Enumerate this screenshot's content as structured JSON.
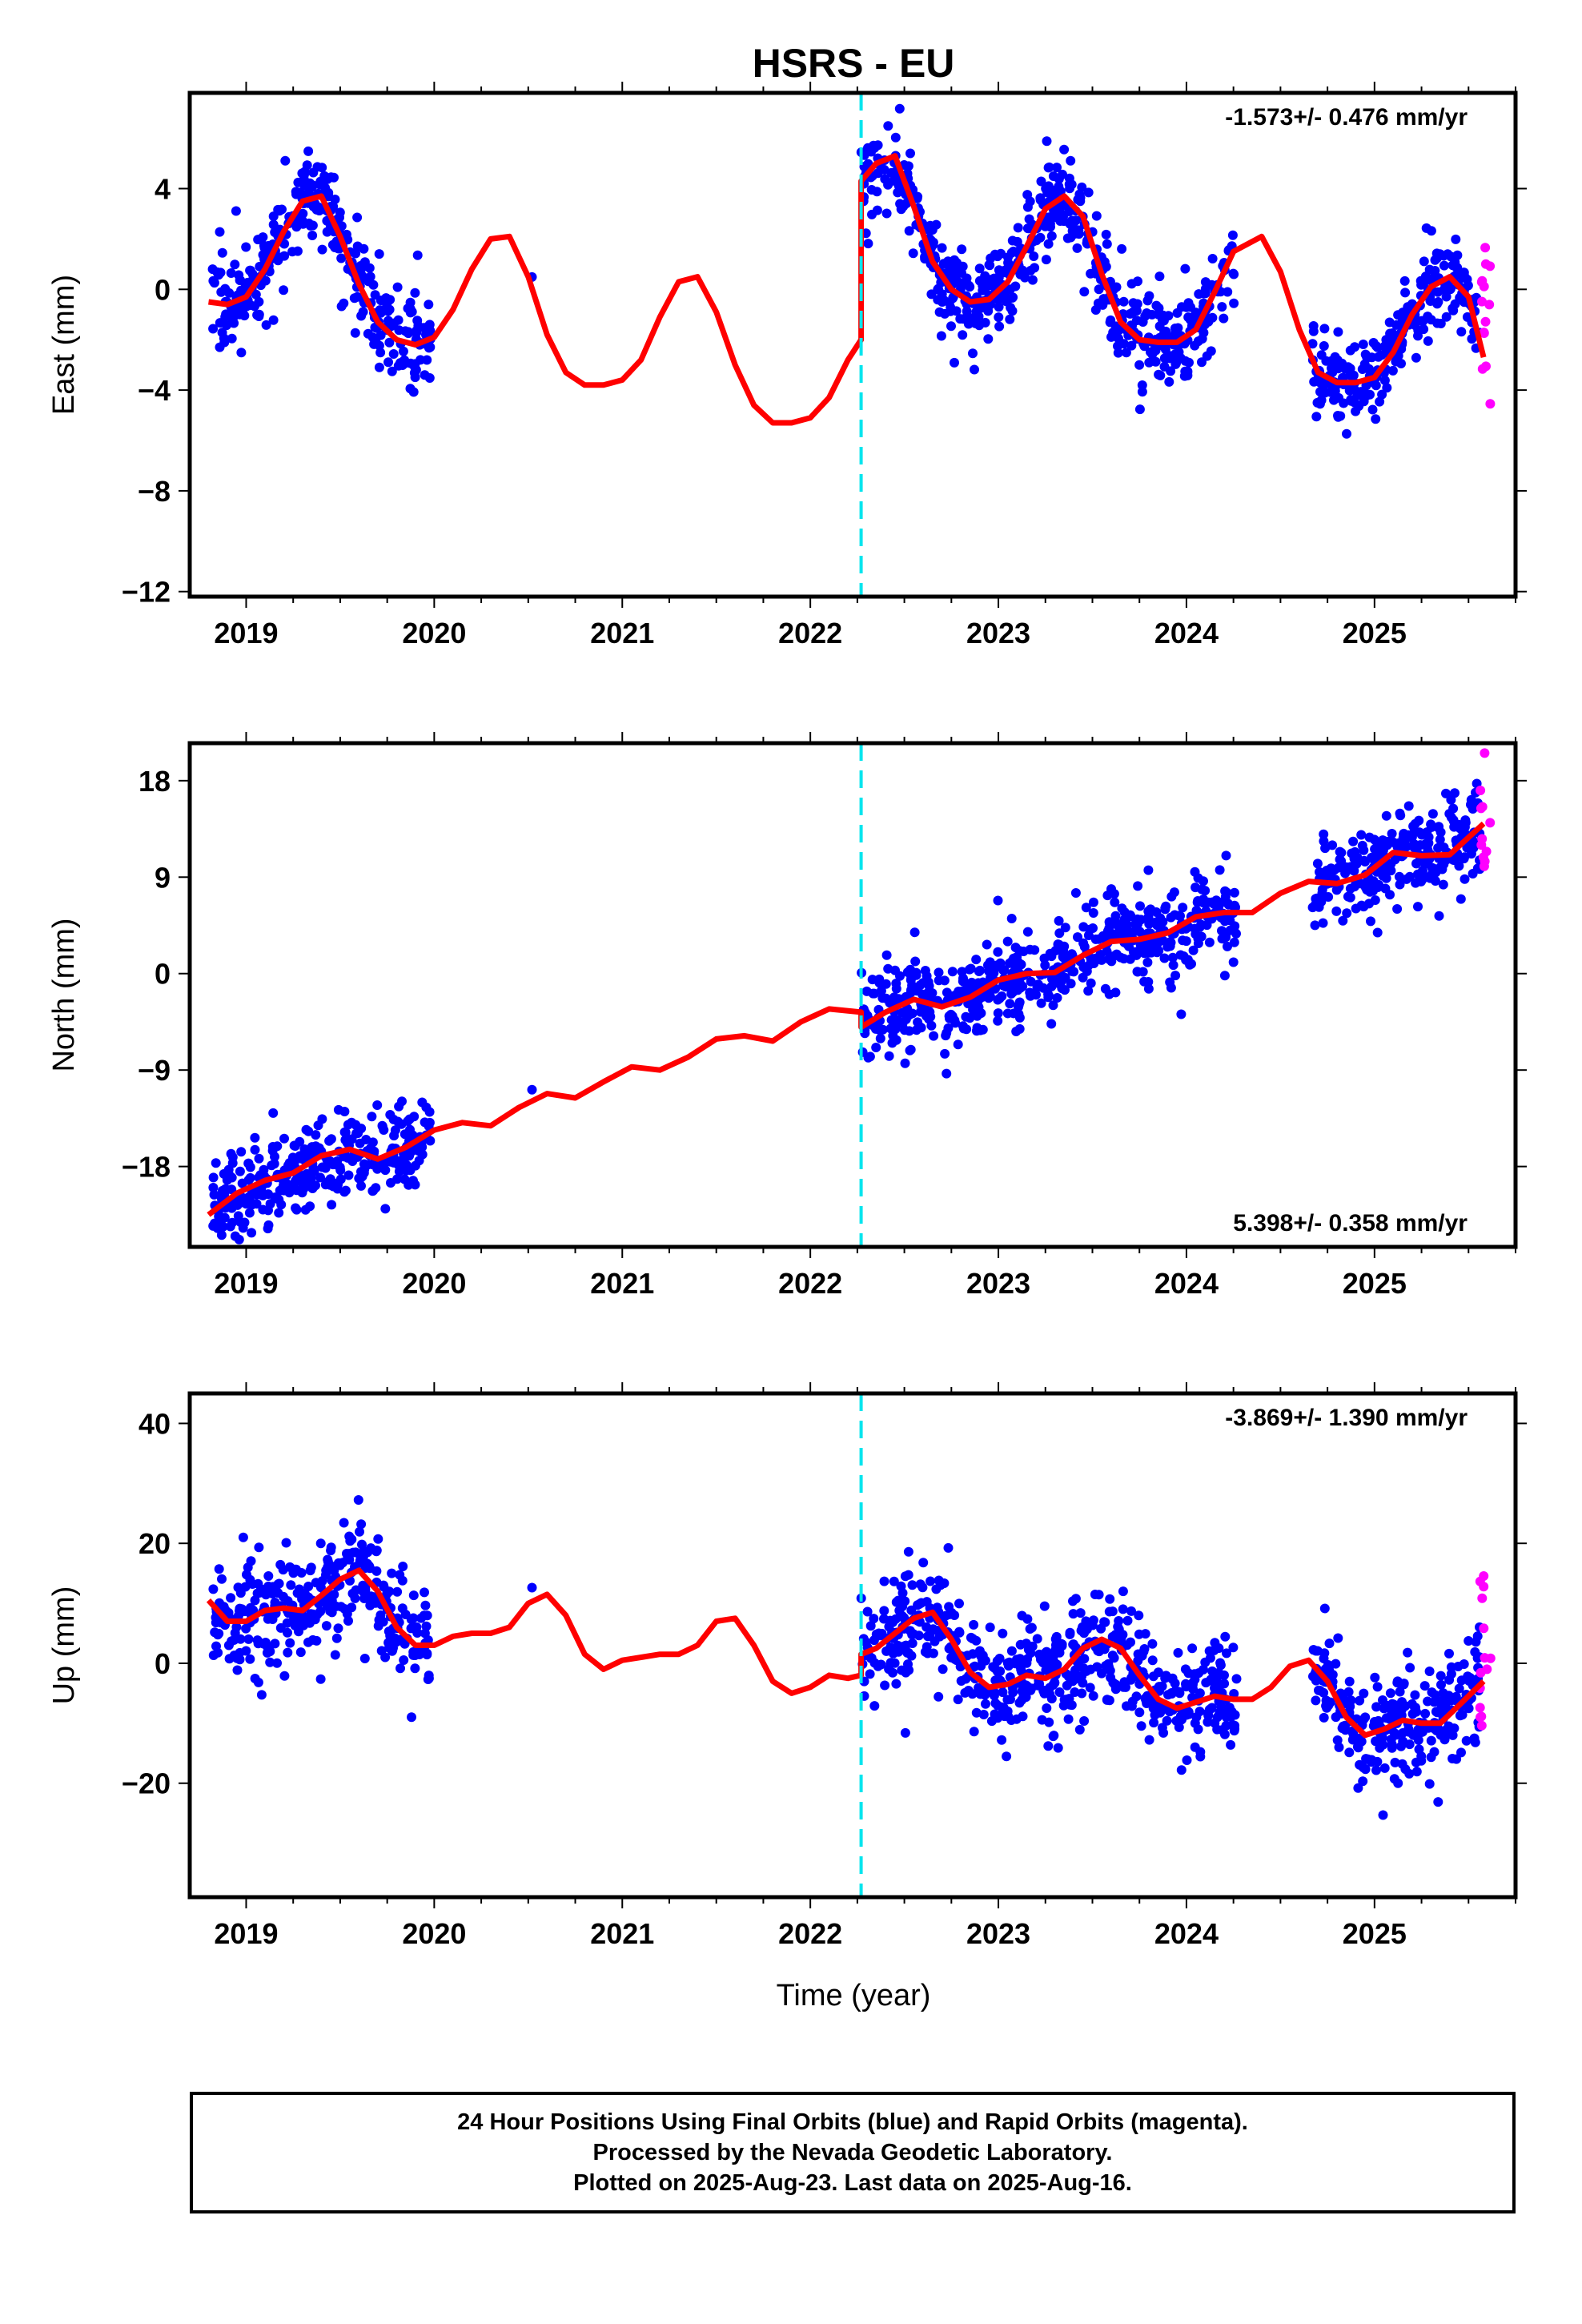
{
  "title": "HSRS - EU",
  "x_axis_label": "Time (year)",
  "footer": {
    "line1": "24 Hour Positions Using Final Orbits (blue) and Rapid Orbits (magenta).",
    "line2": "Processed by the Nevada Geodetic Laboratory.",
    "line3": "Plotted on 2025-Aug-23. Last data on 2025-Aug-16."
  },
  "colors": {
    "final_orbits": "#0000ff",
    "rapid_orbits": "#ff00ff",
    "model_fit": "#ff0000",
    "discontinuity": "#00e5ee"
  },
  "chart_data": [
    {
      "type": "scatter",
      "component": "East",
      "ylabel": "East (mm)",
      "rate_label": "-1.573+/- 0.476 mm/yr",
      "xlim": [
        2018.7,
        2025.75
      ],
      "ylim": [
        -12.2,
        7.8
      ],
      "x_ticks": [
        2019,
        2020,
        2021,
        2022,
        2023,
        2024,
        2025
      ],
      "y_ticks": [
        4,
        0,
        -4,
        -8,
        -12
      ],
      "discontinuity_x": 2022.27,
      "data_segments": [
        [
          2018.82,
          2019.98
        ],
        [
          2022.27,
          2024.27
        ],
        [
          2024.67,
          2025.56
        ]
      ],
      "rapid_range": [
        2025.56,
        2025.62
      ],
      "model_fit": {
        "x": [
          2018.8,
          2018.9,
          2019.0,
          2019.1,
          2019.2,
          2019.3,
          2019.4,
          2019.5,
          2019.6,
          2019.7,
          2019.8,
          2019.9,
          2020.0,
          2020.1,
          2020.2,
          2020.3,
          2020.4,
          2020.5,
          2020.6,
          2020.7,
          2020.8,
          2020.9,
          2021.0,
          2021.1,
          2021.2,
          2021.3,
          2021.4,
          2021.5,
          2021.6,
          2021.7,
          2021.8,
          2021.9,
          2022.0,
          2022.1,
          2022.2,
          2022.27,
          2022.27,
          2022.35,
          2022.45,
          2022.55,
          2022.65,
          2022.75,
          2022.85,
          2022.95,
          2023.05,
          2023.15,
          2023.25,
          2023.35,
          2023.45,
          2023.55,
          2023.65,
          2023.75,
          2023.85,
          2023.95,
          2024.05,
          2024.15,
          2024.25,
          2024.4,
          2024.5,
          2024.6,
          2024.7,
          2024.8,
          2024.9,
          2025.0,
          2025.1,
          2025.2,
          2025.3,
          2025.4,
          2025.5,
          2025.58
        ],
        "y": [
          -0.5,
          -0.6,
          -0.3,
          0.8,
          2.3,
          3.5,
          3.7,
          2.1,
          0.2,
          -1.3,
          -2.0,
          -2.2,
          -1.9,
          -0.8,
          0.8,
          2.0,
          2.1,
          0.5,
          -1.8,
          -3.3,
          -3.8,
          -3.8,
          -3.6,
          -2.8,
          -1.1,
          0.3,
          0.5,
          -0.9,
          -3.0,
          -4.6,
          -5.3,
          -5.3,
          -5.1,
          -4.3,
          -2.8,
          -2.0,
          4.3,
          5.0,
          5.3,
          3.3,
          1.1,
          0.0,
          -0.5,
          -0.4,
          0.3,
          1.7,
          3.2,
          3.7,
          2.9,
          0.6,
          -1.3,
          -2.0,
          -2.1,
          -2.1,
          -1.6,
          -0.1,
          1.5,
          2.1,
          0.7,
          -1.6,
          -3.3,
          -3.7,
          -3.7,
          -3.5,
          -2.5,
          -1.0,
          0.1,
          0.5,
          -0.3,
          -2.7
        ]
      }
    },
    {
      "type": "scatter",
      "component": "North",
      "ylabel": "North (mm)",
      "rate_label": "5.398+/- 0.358 mm/yr",
      "xlim": [
        2018.7,
        2025.75
      ],
      "ylim": [
        -25.5,
        21.5
      ],
      "x_ticks": [
        2019,
        2020,
        2021,
        2022,
        2023,
        2024,
        2025
      ],
      "y_ticks": [
        18,
        9,
        0,
        -9,
        -18
      ],
      "discontinuity_x": 2022.27,
      "data_segments": [
        [
          2018.82,
          2019.98
        ],
        [
          2022.27,
          2024.27
        ],
        [
          2024.67,
          2025.56
        ]
      ],
      "rapid_range": [
        2025.56,
        2025.62
      ],
      "model_fit": {
        "x": [
          2018.8,
          2018.95,
          2019.1,
          2019.25,
          2019.4,
          2019.55,
          2019.7,
          2019.85,
          2020.0,
          2020.15,
          2020.3,
          2020.45,
          2020.6,
          2020.75,
          2020.9,
          2021.05,
          2021.2,
          2021.35,
          2021.5,
          2021.65,
          2021.8,
          2021.95,
          2022.1,
          2022.27,
          2022.27,
          2022.4,
          2022.55,
          2022.7,
          2022.85,
          2023.0,
          2023.15,
          2023.3,
          2023.45,
          2023.6,
          2023.75,
          2023.9,
          2024.05,
          2024.2,
          2024.35,
          2024.5,
          2024.65,
          2024.8,
          2024.95,
          2025.1,
          2025.25,
          2025.4,
          2025.58
        ],
        "y": [
          -22.5,
          -20.5,
          -19.3,
          -18.6,
          -17.0,
          -16.4,
          -17.3,
          -16.2,
          -14.6,
          -13.9,
          -14.2,
          -12.5,
          -11.2,
          -11.6,
          -10.1,
          -8.7,
          -9.0,
          -7.8,
          -6.1,
          -5.8,
          -6.3,
          -4.5,
          -3.3,
          -3.6,
          -5.0,
          -3.6,
          -2.4,
          -3.1,
          -2.2,
          -0.6,
          0.0,
          0.1,
          1.7,
          3.0,
          3.2,
          3.8,
          5.3,
          5.7,
          5.7,
          7.5,
          8.6,
          8.4,
          9.2,
          11.3,
          11.0,
          11.1,
          14.0
        ]
      }
    },
    {
      "type": "scatter",
      "component": "Up",
      "ylabel": "Up (mm)",
      "rate_label": "-3.869+/- 1.390 mm/yr",
      "xlim": [
        2018.7,
        2025.75
      ],
      "ylim": [
        -39,
        45
      ],
      "x_ticks": [
        2019,
        2020,
        2021,
        2022,
        2023,
        2024,
        2025
      ],
      "y_ticks": [
        40,
        20,
        0,
        -20
      ],
      "discontinuity_x": 2022.27,
      "data_segments": [
        [
          2018.82,
          2019.98
        ],
        [
          2022.27,
          2024.27
        ],
        [
          2024.67,
          2025.56
        ]
      ],
      "rapid_range": [
        2025.56,
        2025.62
      ],
      "model_fit": {
        "x": [
          2018.8,
          2018.9,
          2019.0,
          2019.1,
          2019.2,
          2019.3,
          2019.4,
          2019.5,
          2019.6,
          2019.7,
          2019.8,
          2019.9,
          2020.0,
          2020.1,
          2020.2,
          2020.3,
          2020.4,
          2020.5,
          2020.6,
          2020.7,
          2020.8,
          2020.9,
          2021.0,
          2021.1,
          2021.2,
          2021.3,
          2021.4,
          2021.5,
          2021.6,
          2021.7,
          2021.8,
          2021.9,
          2022.0,
          2022.1,
          2022.2,
          2022.27,
          2022.27,
          2022.35,
          2022.45,
          2022.55,
          2022.65,
          2022.75,
          2022.85,
          2022.95,
          2023.05,
          2023.15,
          2023.25,
          2023.35,
          2023.45,
          2023.55,
          2023.65,
          2023.75,
          2023.85,
          2023.95,
          2024.05,
          2024.15,
          2024.25,
          2024.35,
          2024.45,
          2024.55,
          2024.65,
          2024.75,
          2024.85,
          2024.95,
          2025.05,
          2025.15,
          2025.25,
          2025.35,
          2025.45,
          2025.58
        ],
        "y": [
          10.5,
          7.0,
          7.0,
          8.8,
          9.2,
          8.8,
          11.3,
          14.0,
          15.5,
          12.0,
          6.0,
          3.0,
          3.0,
          4.5,
          5.0,
          5.0,
          6.0,
          10.0,
          11.5,
          8.0,
          1.5,
          -1.0,
          0.5,
          1.0,
          1.5,
          1.5,
          3.0,
          7.0,
          7.5,
          3.0,
          -3.0,
          -5.0,
          -4.0,
          -2.0,
          -2.5,
          -2.0,
          1.5,
          2.5,
          5.0,
          7.5,
          8.5,
          4.0,
          -1.5,
          -4.0,
          -3.5,
          -2.0,
          -2.5,
          -1.0,
          2.5,
          4.0,
          2.5,
          -2.0,
          -6.0,
          -7.5,
          -6.5,
          -5.5,
          -6.0,
          -6.0,
          -4.0,
          -0.5,
          0.5,
          -3.0,
          -9.0,
          -12.0,
          -11.0,
          -9.5,
          -10.0,
          -10.0,
          -7.0,
          -3.0
        ]
      }
    }
  ]
}
